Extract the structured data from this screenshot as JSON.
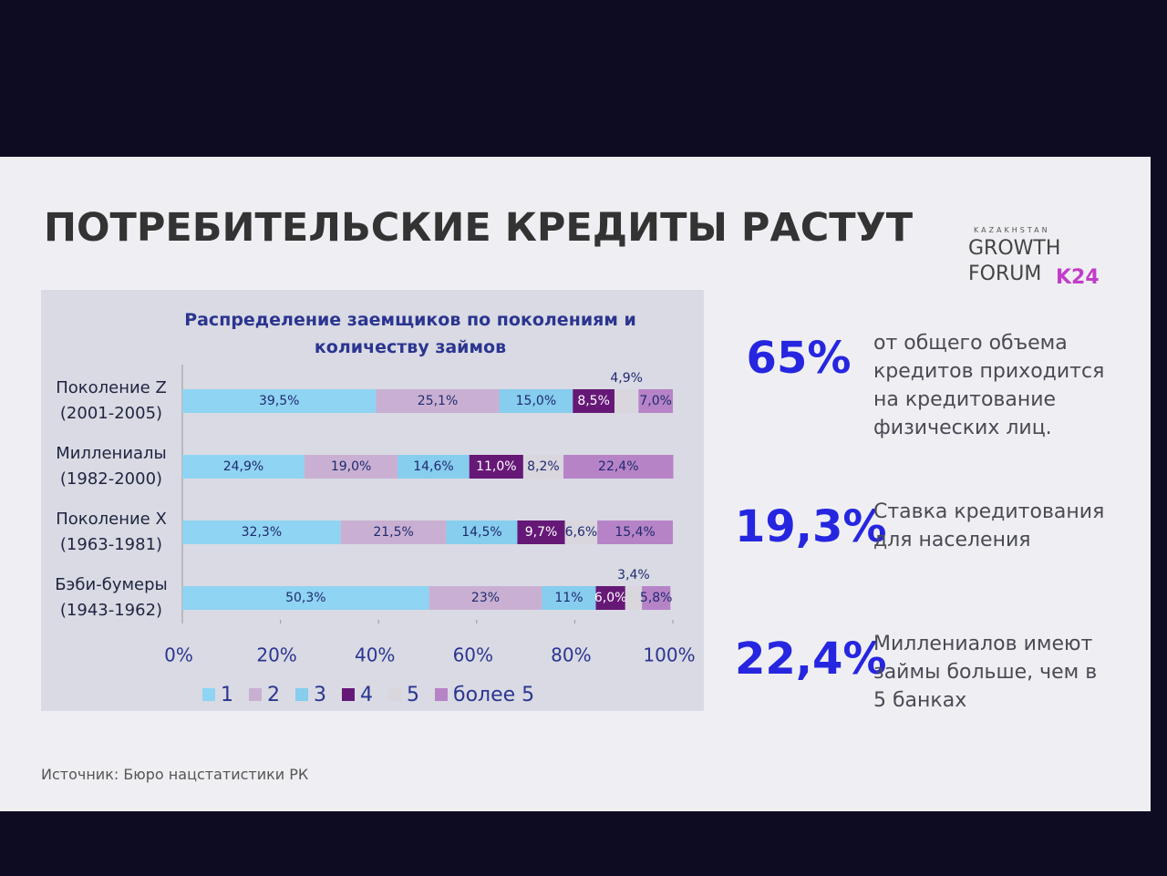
{
  "header": {
    "title": "ПОТРЕБИТЕЛЬСКИЕ КРЕДИТЫ РАСТУТ"
  },
  "logo": {
    "top": "KAZAKHSTAN",
    "line1": "GROWTH",
    "line2": "FORUM",
    "mark": "K24"
  },
  "chart_data": {
    "type": "stacked_barh",
    "title": "Распределение заемщиков по поколениям и количеству займов",
    "categories": [
      "Поколение Z\n(2001-2005)",
      "Миллениалы\n(1982-2000)",
      "Поколение X\n(1963-1981)",
      "Бэби-бумеры\n(1943-1962)"
    ],
    "series": [
      {
        "name": "1",
        "color": "#8fd4f2",
        "values": [
          39.5,
          24.9,
          32.3,
          50.3
        ],
        "value_labels": [
          "39,5%",
          "24,9%",
          "32,3%",
          "50,3%"
        ]
      },
      {
        "name": "2",
        "color": "#c9b0d2",
        "values": [
          25.1,
          19.0,
          21.5,
          23
        ],
        "value_labels": [
          "25,1%",
          "19,0%",
          "21,5%",
          "23%"
        ]
      },
      {
        "name": "3",
        "color": "#86cdee",
        "values": [
          15.0,
          14.6,
          14.5,
          11
        ],
        "value_labels": [
          "15,0%",
          "14,6%",
          "14,5%",
          "11%"
        ]
      },
      {
        "name": "4",
        "color": "#661877",
        "values": [
          8.5,
          11.0,
          9.7,
          6.0
        ],
        "value_labels": [
          "8,5%",
          "11,0%",
          "9,7%",
          "6,0%"
        ]
      },
      {
        "name": "5",
        "color": "#d9d6de",
        "values": [
          4.9,
          8.2,
          6.6,
          3.4
        ],
        "value_labels": [
          "4,9%",
          "8,2%",
          "6,6%",
          "3,4%"
        ]
      },
      {
        "name": "более 5",
        "color": "#b783c7",
        "values": [
          7.0,
          22.4,
          15.4,
          5.8
        ],
        "value_labels": [
          "7,0%",
          "22,4%",
          "15,4%",
          "5,8%"
        ]
      }
    ],
    "xlim": [
      0,
      100
    ],
    "xticks": [
      {
        "value": 0,
        "label": "0%"
      },
      {
        "value": 20,
        "label": "20%"
      },
      {
        "value": 40,
        "label": "40%"
      },
      {
        "value": 60,
        "label": "60%"
      },
      {
        "value": 80,
        "label": "80%"
      },
      {
        "value": 100,
        "label": "100%"
      }
    ],
    "legend": "bottom"
  },
  "stats": [
    {
      "value": "65%",
      "text": "от общего объема кредитов приходится на кредитование физических лиц."
    },
    {
      "value": "19,3%",
      "text": "Ставка кредитования для населения"
    },
    {
      "value": "22,4%",
      "text": "Миллениалов имеют займы больше, чем в 5 банках"
    }
  ],
  "source": "Источник: Бюро нацстатистики РК"
}
